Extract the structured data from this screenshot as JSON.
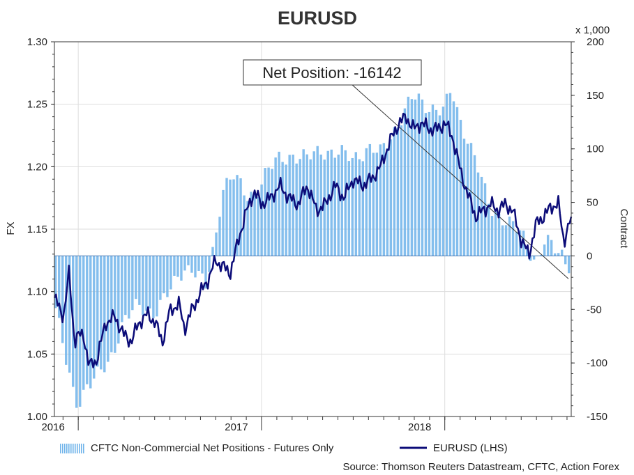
{
  "chart_data": {
    "type": "bar+line",
    "title": "EURUSD",
    "left_axis": {
      "label": "FX",
      "ylim": [
        1.0,
        1.3
      ],
      "ticks": [
        "1.00",
        "1.05",
        "1.10",
        "1.15",
        "1.20",
        "1.25",
        "1.30"
      ]
    },
    "right_axis": {
      "label": "Contract",
      "unit": "x 1,000",
      "ylim": [
        -150,
        200
      ],
      "ticks": [
        "-150",
        "-100",
        "-50",
        "0",
        "50",
        "100",
        "150",
        "200"
      ]
    },
    "x_axis": {
      "ticks": [
        "2016",
        "2017",
        "2018"
      ]
    },
    "grid": true,
    "legend": {
      "placement": "bottom"
    },
    "callout": "Net Position: -16142",
    "source": "Source: Thomson Reuters Datastream, CFTC, Action Forex",
    "series": [
      {
        "name": "CFTC Non-Commercial Net Positions - Futures Only",
        "kind": "bar",
        "axis": "right",
        "color": "#6fb3ea",
        "keypoints": [
          [
            2015.87,
            -40
          ],
          [
            2015.93,
            -95
          ],
          [
            2015.97,
            -125
          ],
          [
            2016.0,
            -138
          ],
          [
            2016.05,
            -120
          ],
          [
            2016.1,
            -115
          ],
          [
            2016.17,
            -100
          ],
          [
            2016.25,
            -60
          ],
          [
            2016.33,
            -48
          ],
          [
            2016.42,
            -52
          ],
          [
            2016.5,
            -35
          ],
          [
            2016.58,
            -10
          ],
          [
            2016.63,
            -12
          ],
          [
            2016.7,
            -30
          ],
          [
            2016.75,
            15
          ],
          [
            2016.79,
            65
          ],
          [
            2016.85,
            75
          ],
          [
            2016.92,
            55
          ],
          [
            2016.97,
            60
          ],
          [
            2017.03,
            78
          ],
          [
            2017.1,
            90
          ],
          [
            2017.17,
            95
          ],
          [
            2017.25,
            90
          ],
          [
            2017.33,
            100
          ],
          [
            2017.42,
            95
          ],
          [
            2017.5,
            92
          ],
          [
            2017.58,
            100
          ],
          [
            2017.65,
            95
          ],
          [
            2017.7,
            110
          ],
          [
            2017.75,
            125
          ],
          [
            2017.83,
            148
          ],
          [
            2017.92,
            140
          ],
          [
            2018.0,
            135
          ],
          [
            2018.04,
            155
          ],
          [
            2018.08,
            130
          ],
          [
            2018.13,
            110
          ],
          [
            2018.17,
            90
          ],
          [
            2018.22,
            60
          ],
          [
            2018.25,
            45
          ],
          [
            2018.33,
            35
          ],
          [
            2018.42,
            20
          ],
          [
            2018.5,
            -5
          ],
          [
            2018.55,
            15
          ],
          [
            2018.6,
            5
          ],
          [
            2018.65,
            0
          ],
          [
            2018.69,
            -16.142
          ]
        ]
      },
      {
        "name": "EURUSD (LHS)",
        "kind": "line",
        "axis": "left",
        "color": "#0c0c78",
        "keypoints": [
          [
            2015.87,
            1.095
          ],
          [
            2015.92,
            1.08
          ],
          [
            2015.95,
            1.115
          ],
          [
            2015.98,
            1.06
          ],
          [
            2016.0,
            1.065
          ],
          [
            2016.03,
            1.065
          ],
          [
            2016.06,
            1.04
          ],
          [
            2016.1,
            1.045
          ],
          [
            2016.15,
            1.075
          ],
          [
            2016.2,
            1.08
          ],
          [
            2016.25,
            1.065
          ],
          [
            2016.29,
            1.06
          ],
          [
            2016.33,
            1.075
          ],
          [
            2016.38,
            1.082
          ],
          [
            2016.42,
            1.075
          ],
          [
            2016.46,
            1.06
          ],
          [
            2016.5,
            1.085
          ],
          [
            2016.55,
            1.09
          ],
          [
            2016.58,
            1.07
          ],
          [
            2016.62,
            1.085
          ],
          [
            2016.67,
            1.1
          ],
          [
            2016.71,
            1.11
          ],
          [
            2016.75,
            1.125
          ],
          [
            2016.79,
            1.12
          ],
          [
            2016.83,
            1.115
          ],
          [
            2016.88,
            1.145
          ],
          [
            2016.92,
            1.165
          ],
          [
            2016.96,
            1.18
          ],
          [
            2017.0,
            1.17
          ],
          [
            2017.05,
            1.175
          ],
          [
            2017.1,
            1.185
          ],
          [
            2017.15,
            1.175
          ],
          [
            2017.2,
            1.17
          ],
          [
            2017.25,
            1.185
          ],
          [
            2017.3,
            1.165
          ],
          [
            2017.35,
            1.17
          ],
          [
            2017.4,
            1.185
          ],
          [
            2017.45,
            1.175
          ],
          [
            2017.5,
            1.19
          ],
          [
            2017.55,
            1.185
          ],
          [
            2017.6,
            1.19
          ],
          [
            2017.65,
            1.2
          ],
          [
            2017.7,
            1.22
          ],
          [
            2017.75,
            1.235
          ],
          [
            2017.79,
            1.24
          ],
          [
            2017.83,
            1.23
          ],
          [
            2017.87,
            1.235
          ],
          [
            2017.92,
            1.23
          ],
          [
            2017.96,
            1.23
          ],
          [
            2018.0,
            1.235
          ],
          [
            2018.04,
            1.225
          ],
          [
            2018.08,
            1.2
          ],
          [
            2018.12,
            1.18
          ],
          [
            2018.17,
            1.16
          ],
          [
            2018.21,
            1.165
          ],
          [
            2018.25,
            1.17
          ],
          [
            2018.29,
            1.165
          ],
          [
            2018.33,
            1.17
          ],
          [
            2018.37,
            1.165
          ],
          [
            2018.42,
            1.14
          ],
          [
            2018.46,
            1.13
          ],
          [
            2018.5,
            1.155
          ],
          [
            2018.54,
            1.16
          ],
          [
            2018.58,
            1.168
          ],
          [
            2018.62,
            1.17
          ],
          [
            2018.65,
            1.14
          ],
          [
            2018.69,
            1.16
          ]
        ]
      }
    ]
  }
}
